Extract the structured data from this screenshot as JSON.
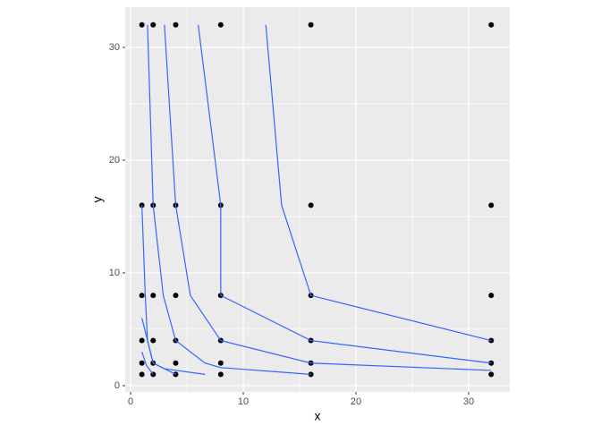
{
  "chart_data": {
    "type": "scatter",
    "x_label": "x",
    "y_label": "y",
    "x": [
      1,
      2,
      4,
      8,
      16,
      32,
      1,
      2,
      4,
      8,
      16,
      32,
      1,
      2,
      4,
      8,
      16,
      32,
      1,
      2,
      4,
      8,
      16,
      32,
      1,
      2,
      4,
      8,
      16,
      32,
      1,
      2,
      4,
      8,
      16,
      32
    ],
    "y": [
      1,
      1,
      1,
      1,
      1,
      1,
      2,
      2,
      2,
      2,
      2,
      2,
      4,
      4,
      4,
      4,
      4,
      4,
      8,
      8,
      8,
      8,
      8,
      8,
      16,
      16,
      16,
      16,
      16,
      16,
      32,
      32,
      32,
      32,
      32,
      32
    ],
    "point_color": "#000000",
    "line_color": "#3366ff",
    "contours": [
      {
        "x": [
          12,
          13.4,
          16,
          32
        ],
        "y": [
          32,
          16,
          8,
          4
        ]
      },
      {
        "x": [
          6,
          8,
          8,
          16,
          32
        ],
        "y": [
          32,
          16,
          8,
          4,
          2
        ]
      },
      {
        "x": [
          3,
          4,
          5.3,
          8,
          16,
          32
        ],
        "y": [
          32,
          16,
          8,
          4,
          2,
          1.35
        ]
      },
      {
        "x": [
          1.5,
          2,
          2.9,
          4,
          6.6,
          8,
          16
        ],
        "y": [
          32,
          16,
          8,
          4,
          2,
          1.6,
          1
        ]
      },
      {
        "x": [
          1,
          1.3,
          1.5,
          2,
          4
        ],
        "y": [
          16,
          8,
          4,
          2,
          1
        ]
      },
      {
        "x": [
          1,
          1.5,
          2,
          3,
          6.6
        ],
        "y": [
          6,
          4,
          2,
          1.5,
          1
        ]
      },
      {
        "x": [
          1,
          1.4,
          2
        ],
        "y": [
          3,
          1.8,
          1
        ]
      }
    ],
    "xlim": [
      -0.48,
      33.65
    ],
    "ylim": [
      -0.56,
      33.57
    ],
    "xticks": [
      0,
      10,
      20,
      30
    ],
    "yticks": [
      0,
      10,
      20,
      30
    ],
    "x_minor_ticks": [
      5,
      15,
      25
    ],
    "y_minor_ticks": [
      5,
      15,
      25
    ],
    "grid": true
  }
}
